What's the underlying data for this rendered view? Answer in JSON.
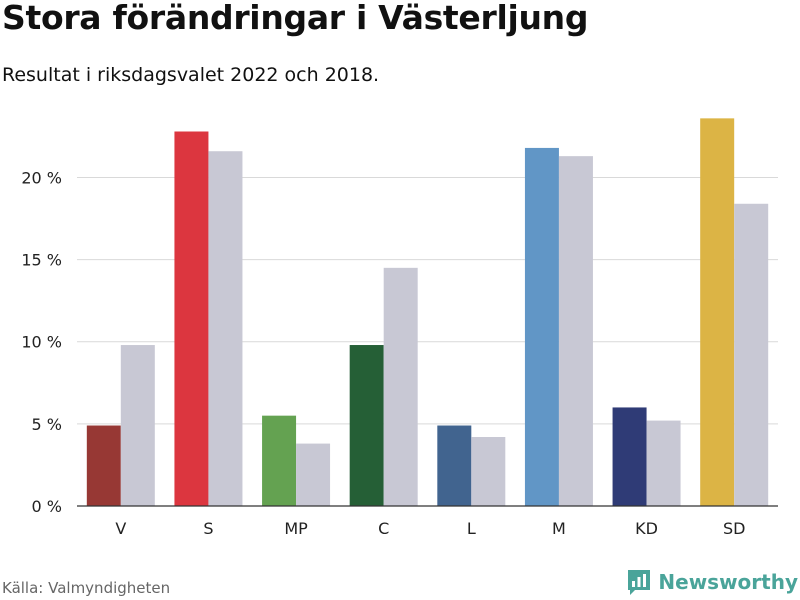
{
  "header": {
    "title": "Stora förändringar i Västerljung",
    "subtitle": "Resultat i riksdagsvalet 2022 och 2018."
  },
  "footer": {
    "source": "Källa: Valmyndigheten",
    "brand": "Newsworthy",
    "brand_icon": "newsworthy-bar-chart-icon",
    "brand_color": "#4aa49a"
  },
  "chart_data": {
    "type": "bar",
    "title": "Stora förändringar i Västerljung",
    "subtitle": "Resultat i riksdagsvalet 2022 och 2018.",
    "xlabel": "",
    "ylabel": "",
    "ylim": [
      0,
      23.5
    ],
    "yticks": [
      0,
      5,
      10,
      15,
      20
    ],
    "ytick_labels": [
      "0 %",
      "5 %",
      "10 %",
      "15 %",
      "20 %"
    ],
    "grid": true,
    "categories": [
      "V",
      "S",
      "MP",
      "C",
      "L",
      "M",
      "KD",
      "SD"
    ],
    "series": [
      {
        "values": [
          4.9,
          22.8,
          5.5,
          9.8,
          4.9,
          21.8,
          6.0,
          23.6
        ],
        "colors": [
          "#973834",
          "#dc363f",
          "#64a251",
          "#255f36",
          "#41648f",
          "#6196c6",
          "#2f3b76",
          "#dcb445"
        ]
      },
      {
        "values": [
          9.8,
          21.6,
          3.8,
          14.5,
          4.2,
          21.3,
          5.2,
          18.4
        ],
        "color": "#c8c8d4"
      }
    ]
  }
}
